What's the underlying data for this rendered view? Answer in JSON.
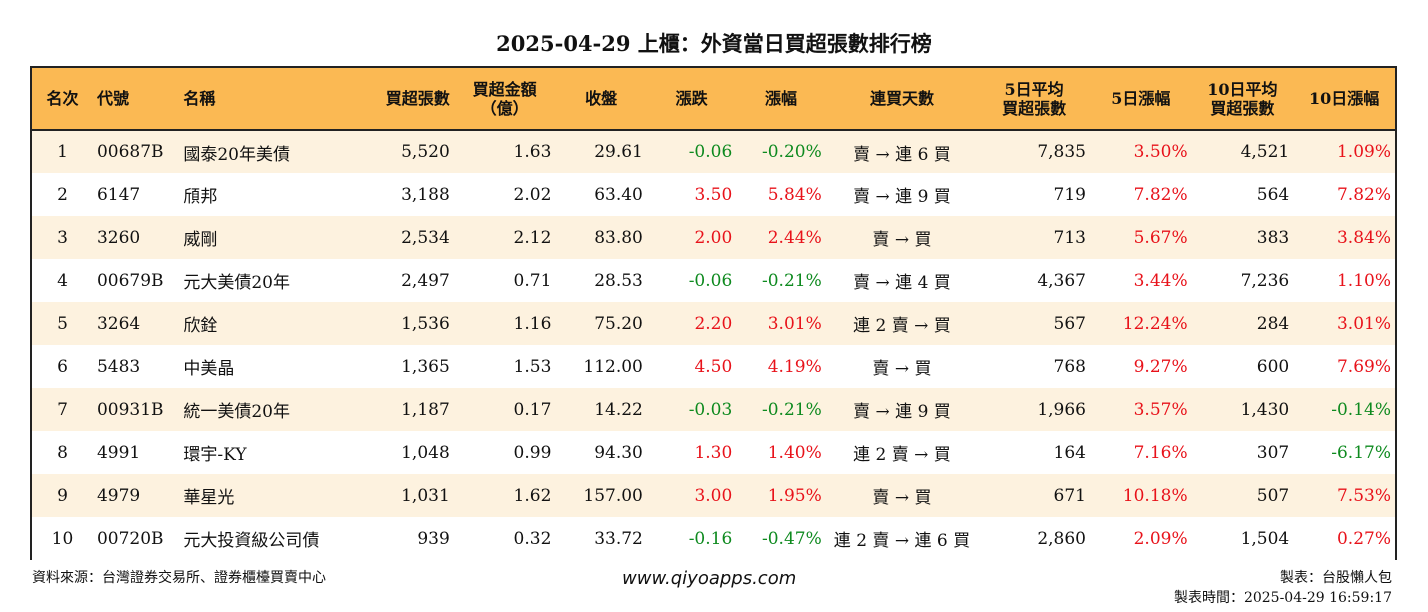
{
  "title": "2025-04-29 上櫃：外資當日買超張數排行榜",
  "headers": {
    "rank": "名次",
    "code": "代號",
    "name": "名稱",
    "buy_lots": "買超張數",
    "amount_l1": "買超金額",
    "amount_l2": "（億）",
    "close": "收盤",
    "change": "漲跌",
    "pct": "漲幅",
    "streak": "連買天數",
    "avg5_l1": "5日平均",
    "avg5_l2": "買超張數",
    "pct5": "5日漲幅",
    "avg10_l1": "10日平均",
    "avg10_l2": "買超張數",
    "pct10": "10日漲幅"
  },
  "rows": [
    {
      "rank": "1",
      "code": "00687B",
      "name": "國泰20年美債",
      "buy": "5,520",
      "amount": "1.63",
      "close": "29.61",
      "change": "-0.06",
      "pct": "-0.20%",
      "streak": "賣 → 連 6 買",
      "avg5": "7,835",
      "pct5": "3.50%",
      "avg10": "4,521",
      "pct10": "1.09%"
    },
    {
      "rank": "2",
      "code": "6147",
      "name": "頎邦",
      "buy": "3,188",
      "amount": "2.02",
      "close": "63.40",
      "change": "3.50",
      "pct": "5.84%",
      "streak": "賣 → 連 9 買",
      "avg5": "719",
      "pct5": "7.82%",
      "avg10": "564",
      "pct10": "7.82%"
    },
    {
      "rank": "3",
      "code": "3260",
      "name": "威剛",
      "buy": "2,534",
      "amount": "2.12",
      "close": "83.80",
      "change": "2.00",
      "pct": "2.44%",
      "streak": "賣 → 買",
      "avg5": "713",
      "pct5": "5.67%",
      "avg10": "383",
      "pct10": "3.84%"
    },
    {
      "rank": "4",
      "code": "00679B",
      "name": "元大美債20年",
      "buy": "2,497",
      "amount": "0.71",
      "close": "28.53",
      "change": "-0.06",
      "pct": "-0.21%",
      "streak": "賣 → 連 4 買",
      "avg5": "4,367",
      "pct5": "3.44%",
      "avg10": "7,236",
      "pct10": "1.10%"
    },
    {
      "rank": "5",
      "code": "3264",
      "name": "欣銓",
      "buy": "1,536",
      "amount": "1.16",
      "close": "75.20",
      "change": "2.20",
      "pct": "3.01%",
      "streak": "連 2 賣 → 買",
      "avg5": "567",
      "pct5": "12.24%",
      "avg10": "284",
      "pct10": "3.01%"
    },
    {
      "rank": "6",
      "code": "5483",
      "name": "中美晶",
      "buy": "1,365",
      "amount": "1.53",
      "close": "112.00",
      "change": "4.50",
      "pct": "4.19%",
      "streak": "賣 → 買",
      "avg5": "768",
      "pct5": "9.27%",
      "avg10": "600",
      "pct10": "7.69%"
    },
    {
      "rank": "7",
      "code": "00931B",
      "name": "統一美債20年",
      "buy": "1,187",
      "amount": "0.17",
      "close": "14.22",
      "change": "-0.03",
      "pct": "-0.21%",
      "streak": "賣 → 連 9 買",
      "avg5": "1,966",
      "pct5": "3.57%",
      "avg10": "1,430",
      "pct10": "-0.14%"
    },
    {
      "rank": "8",
      "code": "4991",
      "name": "環宇-KY",
      "buy": "1,048",
      "amount": "0.99",
      "close": "94.30",
      "change": "1.30",
      "pct": "1.40%",
      "streak": "連 2 賣 → 買",
      "avg5": "164",
      "pct5": "7.16%",
      "avg10": "307",
      "pct10": "-6.17%"
    },
    {
      "rank": "9",
      "code": "4979",
      "name": "華星光",
      "buy": "1,031",
      "amount": "1.62",
      "close": "157.00",
      "change": "3.00",
      "pct": "1.95%",
      "streak": "賣 → 買",
      "avg5": "671",
      "pct5": "10.18%",
      "avg10": "507",
      "pct10": "7.53%"
    },
    {
      "rank": "10",
      "code": "00720B",
      "name": "元大投資級公司債",
      "buy": "939",
      "amount": "0.32",
      "close": "33.72",
      "change": "-0.16",
      "pct": "-0.47%",
      "streak": "連 2 賣 → 連 6 買",
      "avg5": "2,860",
      "pct5": "2.09%",
      "avg10": "1,504",
      "pct10": "0.27%"
    }
  ],
  "footer": {
    "source": "資料來源：台灣證券交易所、證券櫃檯買賣中心",
    "site": "www.qiyoapps.com",
    "maker": "製表：台股懶人包",
    "made_time": "製表時間：2025-04-29 16:59:17"
  },
  "colors": {
    "header_bg": "#fbb953",
    "row_alt_bg": "#fdf2df",
    "positive": "#e8121a",
    "negative": "#0e8a1f"
  }
}
